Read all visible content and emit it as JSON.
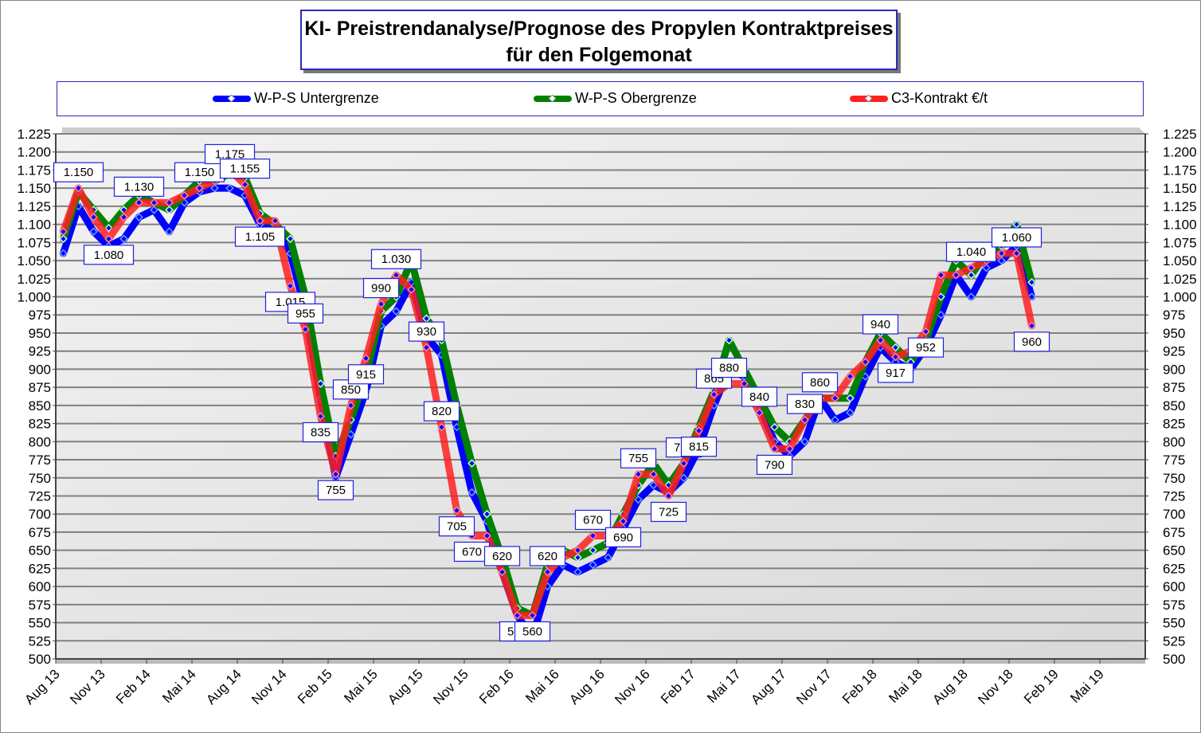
{
  "chart_data": {
    "type": "line",
    "title": "KI- Preistrendanalyse/Prognose des Propylen Kontraktpreises für den Folgemonat",
    "title_lines": [
      "KI- Preistrendanalyse/Prognose des Propylen Kontraktpreises",
      "für den Folgemonat"
    ],
    "legend_placement": "top",
    "grid": true,
    "ylim": [
      500,
      1225
    ],
    "ystep": 25,
    "ytick_labels": [
      "500",
      "525",
      "550",
      "575",
      "600",
      "625",
      "650",
      "675",
      "700",
      "725",
      "750",
      "775",
      "800",
      "825",
      "850",
      "875",
      "900",
      "925",
      "950",
      "975",
      "1.000",
      "1.025",
      "1.050",
      "1.075",
      "1.100",
      "1.125",
      "1.150",
      "1.175",
      "1.200",
      "1.225"
    ],
    "xtick_labels": [
      "Aug 13",
      "Nov 13",
      "Feb 14",
      "Mai 14",
      "Aug 14",
      "Nov 14",
      "Feb 15",
      "Mai 15",
      "Aug 15",
      "Nov 15",
      "Feb 16",
      "Mai 16",
      "Aug 16",
      "Nov 16",
      "Feb 17",
      "Mai 17",
      "Aug 17",
      "Nov 17",
      "Feb 18",
      "Mai 18",
      "Aug 18",
      "Nov 18",
      "Feb 19",
      "Mai 19"
    ],
    "x_start": "Aug 13",
    "x_end": "Dez 18",
    "series": [
      {
        "name": "W-P-S Untergrenze",
        "color": "#0000ff",
        "values": [
          1060,
          1125,
          1090,
          1070,
          1080,
          1110,
          1120,
          1090,
          1130,
          1145,
          1150,
          1150,
          1140,
          1100,
          1095,
          1060,
          980,
          860,
          750,
          810,
          870,
          960,
          980,
          1020,
          945,
          920,
          820,
          730,
          690,
          620,
          560,
          530,
          600,
          630,
          620,
          630,
          640,
          680,
          720,
          740,
          730,
          750,
          790,
          850,
          900,
          890,
          850,
          800,
          780,
          800,
          860,
          830,
          840,
          890,
          930,
          910,
          900,
          930,
          975,
          1030,
          1000,
          1040,
          1050,
          1070,
          1000
        ]
      },
      {
        "name": "W-P-S Obergrenze",
        "color": "#008000",
        "values": [
          1080,
          1145,
          1120,
          1095,
          1120,
          1140,
          1130,
          1120,
          1140,
          1160,
          1160,
          1170,
          1165,
          1115,
          1100,
          1080,
          1000,
          880,
          780,
          830,
          890,
          980,
          1000,
          1050,
          970,
          940,
          850,
          770,
          700,
          640,
          570,
          560,
          630,
          650,
          640,
          650,
          660,
          700,
          740,
          770,
          740,
          770,
          820,
          870,
          940,
          900,
          860,
          820,
          800,
          830,
          860,
          860,
          860,
          910,
          950,
          930,
          910,
          940,
          1000,
          1050,
          1030,
          1060,
          1070,
          1100,
          1020
        ]
      },
      {
        "name": "C3-Kontrakt €/t",
        "color": "#ff2020",
        "values": [
          1090,
          1150,
          1110,
          1080,
          1110,
          1130,
          1130,
          1130,
          1140,
          1150,
          1160,
          1175,
          1155,
          1105,
          1105,
          1015,
          955,
          835,
          755,
          850,
          915,
          990,
          1030,
          1010,
          930,
          820,
          705,
          670,
          670,
          620,
          560,
          560,
          620,
          640,
          650,
          670,
          670,
          690,
          755,
          755,
          725,
          770,
          815,
          865,
          880,
          880,
          840,
          790,
          790,
          830,
          860,
          860,
          890,
          910,
          940,
          917,
          925,
          952,
          1030,
          1030,
          1040,
          1050,
          1060,
          1060,
          960
        ]
      }
    ],
    "data_labels": [
      {
        "index": 1,
        "text": "1.150"
      },
      {
        "index": 3,
        "text": "1.080"
      },
      {
        "index": 5,
        "text": "1.130"
      },
      {
        "index": 9,
        "text": "1.150"
      },
      {
        "index": 11,
        "text": "1.175"
      },
      {
        "index": 12,
        "text": "1.155"
      },
      {
        "index": 13,
        "text": "1.105"
      },
      {
        "index": 15,
        "text": "1.015"
      },
      {
        "index": 16,
        "text": "955"
      },
      {
        "index": 17,
        "text": "835"
      },
      {
        "index": 18,
        "text": "755"
      },
      {
        "index": 19,
        "text": "850"
      },
      {
        "index": 20,
        "text": "915"
      },
      {
        "index": 21,
        "text": "990"
      },
      {
        "index": 22,
        "text": "1.030"
      },
      {
        "index": 24,
        "text": "930"
      },
      {
        "index": 25,
        "text": "820"
      },
      {
        "index": 26,
        "text": "705"
      },
      {
        "index": 27,
        "text": "670"
      },
      {
        "index": 29,
        "text": "620"
      },
      {
        "index": 30,
        "text": "560"
      },
      {
        "index": 31,
        "text": "560"
      },
      {
        "index": 32,
        "text": "620"
      },
      {
        "index": 35,
        "text": "670"
      },
      {
        "index": 37,
        "text": "690"
      },
      {
        "index": 38,
        "text": "755"
      },
      {
        "index": 40,
        "text": "725"
      },
      {
        "index": 41,
        "text": "770"
      },
      {
        "index": 42,
        "text": "815"
      },
      {
        "index": 43,
        "text": "865"
      },
      {
        "index": 44,
        "text": "880"
      },
      {
        "index": 46,
        "text": "840"
      },
      {
        "index": 47,
        "text": "790"
      },
      {
        "index": 49,
        "text": "830"
      },
      {
        "index": 50,
        "text": "860"
      },
      {
        "index": 54,
        "text": "940"
      },
      {
        "index": 55,
        "text": "917"
      },
      {
        "index": 57,
        "text": "952"
      },
      {
        "index": 60,
        "text": "1.040"
      },
      {
        "index": 63,
        "text": "1.060"
      },
      {
        "index": 64,
        "text": "960"
      }
    ]
  }
}
